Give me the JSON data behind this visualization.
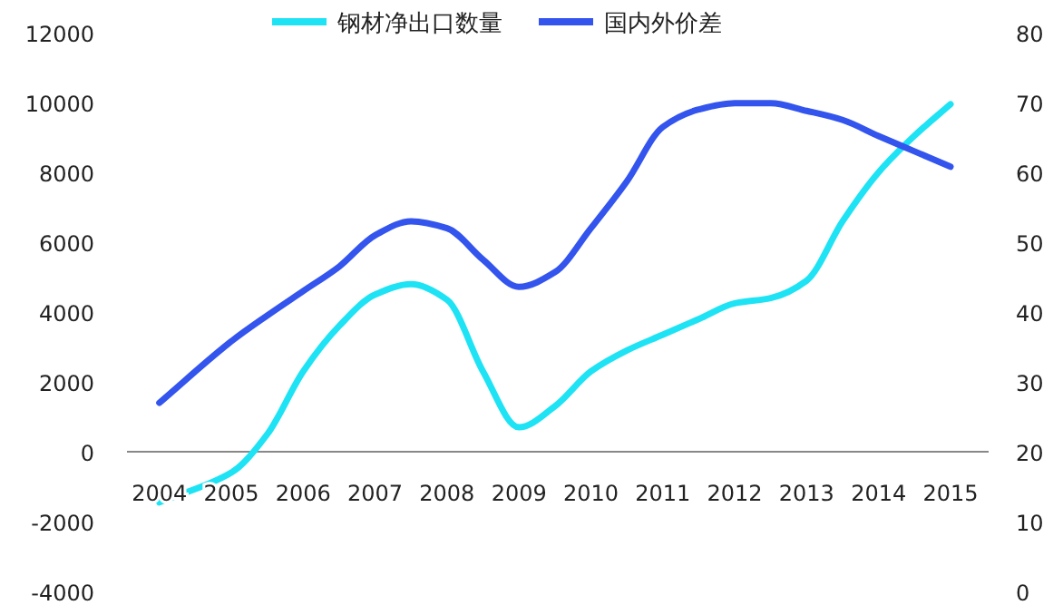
{
  "chart_data": {
    "type": "line",
    "x": [
      2004,
      2005,
      2005.5,
      2006,
      2006.5,
      2007,
      2007.5,
      2008,
      2008.5,
      2009,
      2009.5,
      2010,
      2010.5,
      2011,
      2011.5,
      2012,
      2012.5,
      2013,
      2013.5,
      2014,
      2014.5,
      2015
    ],
    "xlim": [
      2003.55,
      2015.53
    ],
    "xticks": [
      2004,
      2005,
      2006,
      2007,
      2008,
      2009,
      2010,
      2011,
      2012,
      2013,
      2014,
      2015
    ],
    "ylim": [
      -4000,
      12000
    ],
    "yticks": [
      -4000,
      -2000,
      0,
      2000,
      4000,
      6000,
      8000,
      10000,
      12000
    ],
    "y2lim": [
      0,
      80
    ],
    "y2ticks": [
      0,
      10,
      20,
      30,
      40,
      50,
      60,
      70,
      80
    ],
    "legend": "top",
    "grid": false,
    "series": [
      {
        "name": "钢材净出口数量",
        "color": "#1ee3f5",
        "values": [
          -1450,
          -600,
          500,
          2300,
          3600,
          4500,
          4800,
          4350,
          2300,
          700,
          1300,
          2300,
          2900,
          3350,
          3800,
          4250,
          4400,
          4900,
          6600,
          8000,
          9050,
          9950
        ]
      },
      {
        "name": "国内外价差",
        "color": "#3355ee",
        "axis": "y2",
        "values": [
          27,
          35.8,
          39.5,
          43,
          46.5,
          51,
          53,
          52,
          47.5,
          43.6,
          45.7,
          52,
          58.7,
          66.5,
          69,
          69.9,
          69.9,
          68.8,
          67.5,
          65.2,
          63,
          60.8
        ]
      }
    ]
  }
}
